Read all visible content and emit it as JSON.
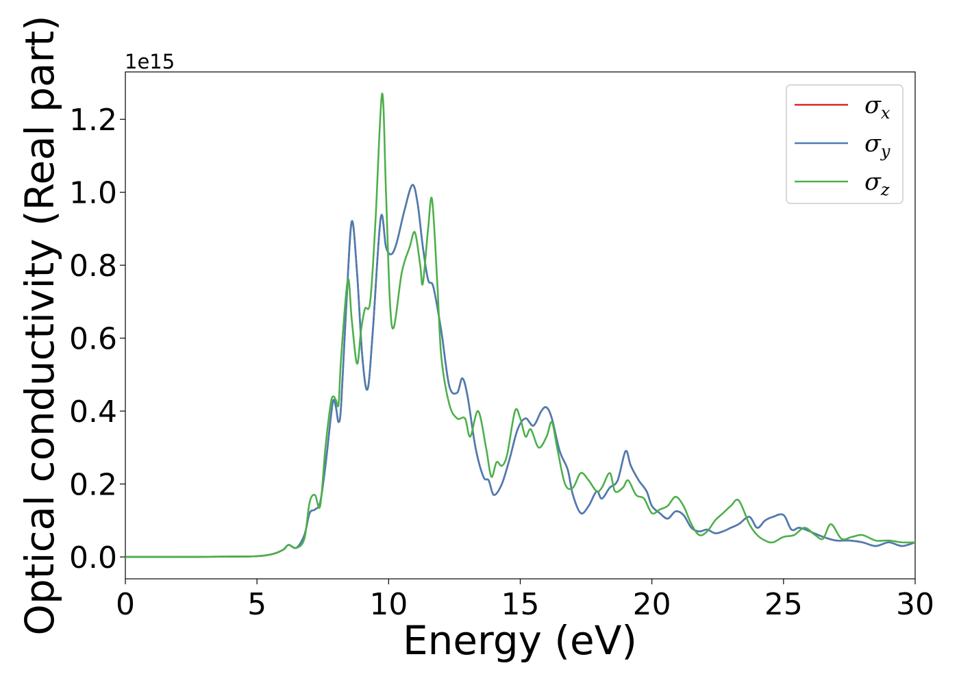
{
  "chart_data": {
    "type": "line",
    "xlabel": "Energy (eV)",
    "ylabel": "Optical conductivity (Real part)",
    "y_offset_label": "1e15",
    "xlim": [
      0,
      30
    ],
    "ylim": [
      -0.06,
      1.33
    ],
    "x_ticks": [
      0,
      5,
      10,
      15,
      20,
      25,
      30
    ],
    "x_tick_labels": [
      "0",
      "5",
      "10",
      "15",
      "20",
      "25",
      "30"
    ],
    "y_ticks": [
      0.0,
      0.2,
      0.4,
      0.6,
      0.8,
      1.0,
      1.2
    ],
    "y_tick_labels": [
      "0.0",
      "0.2",
      "0.4",
      "0.6",
      "0.8",
      "1.0",
      "1.2"
    ],
    "grid": false,
    "legend_position": "top-right",
    "series": [
      {
        "name": "σ",
        "subscript": "x",
        "color": "#d62728",
        "x": [
          0,
          2,
          4,
          5,
          5.6,
          6.0,
          6.2,
          6.5,
          6.8,
          7.0,
          7.2,
          7.4,
          7.6,
          7.8,
          7.9,
          8.0,
          8.1,
          8.2,
          8.4,
          8.6,
          8.8,
          9.0,
          9.2,
          9.4,
          9.7,
          9.9,
          10.1,
          10.3,
          10.6,
          10.9,
          11.1,
          11.3,
          11.5,
          11.7,
          12.0,
          12.3,
          12.6,
          12.8,
          13.0,
          13.3,
          13.6,
          13.8,
          14.0,
          14.3,
          14.6,
          14.9,
          15.2,
          15.5,
          15.8,
          16.0,
          16.2,
          16.5,
          16.8,
          17.0,
          17.3,
          17.6,
          17.9,
          18.1,
          18.4,
          18.7,
          19.0,
          19.2,
          19.5,
          19.8,
          20.0,
          20.3,
          20.6,
          20.9,
          21.2,
          21.5,
          21.8,
          22.1,
          22.4,
          22.7,
          23.0,
          23.3,
          23.7,
          24.0,
          24.3,
          24.6,
          25.0,
          25.3,
          25.6,
          26.0,
          26.5,
          27.0,
          27.5,
          28.0,
          28.5,
          29.0,
          29.5,
          30.0
        ],
        "y": [
          0.0,
          0.0,
          0.001,
          0.002,
          0.008,
          0.02,
          0.033,
          0.025,
          0.06,
          0.12,
          0.13,
          0.15,
          0.25,
          0.38,
          0.43,
          0.41,
          0.37,
          0.42,
          0.7,
          0.92,
          0.78,
          0.55,
          0.46,
          0.62,
          0.93,
          0.85,
          0.83,
          0.86,
          0.95,
          1.02,
          0.97,
          0.85,
          0.76,
          0.74,
          0.62,
          0.47,
          0.45,
          0.49,
          0.44,
          0.3,
          0.22,
          0.21,
          0.17,
          0.2,
          0.27,
          0.35,
          0.38,
          0.36,
          0.4,
          0.41,
          0.38,
          0.29,
          0.24,
          0.17,
          0.12,
          0.14,
          0.18,
          0.16,
          0.19,
          0.21,
          0.29,
          0.25,
          0.21,
          0.18,
          0.14,
          0.12,
          0.105,
          0.125,
          0.115,
          0.08,
          0.07,
          0.075,
          0.065,
          0.07,
          0.08,
          0.09,
          0.11,
          0.08,
          0.1,
          0.11,
          0.115,
          0.075,
          0.08,
          0.07,
          0.055,
          0.045,
          0.045,
          0.04,
          0.03,
          0.04,
          0.03,
          0.04
        ]
      },
      {
        "name": "σ",
        "subscript": "y",
        "color": "#4a7db3",
        "x": [
          0,
          2,
          4,
          5,
          5.6,
          6.0,
          6.2,
          6.5,
          6.8,
          7.0,
          7.2,
          7.4,
          7.6,
          7.8,
          7.9,
          8.0,
          8.1,
          8.2,
          8.4,
          8.6,
          8.8,
          9.0,
          9.2,
          9.4,
          9.7,
          9.9,
          10.1,
          10.3,
          10.6,
          10.9,
          11.1,
          11.3,
          11.5,
          11.7,
          12.0,
          12.3,
          12.6,
          12.8,
          13.0,
          13.3,
          13.6,
          13.8,
          14.0,
          14.3,
          14.6,
          14.9,
          15.2,
          15.5,
          15.8,
          16.0,
          16.2,
          16.5,
          16.8,
          17.0,
          17.3,
          17.6,
          17.9,
          18.1,
          18.4,
          18.7,
          19.0,
          19.2,
          19.5,
          19.8,
          20.0,
          20.3,
          20.6,
          20.9,
          21.2,
          21.5,
          21.8,
          22.1,
          22.4,
          22.7,
          23.0,
          23.3,
          23.7,
          24.0,
          24.3,
          24.6,
          25.0,
          25.3,
          25.6,
          26.0,
          26.5,
          27.0,
          27.5,
          28.0,
          28.5,
          29.0,
          29.5,
          30.0
        ],
        "y": [
          0.0,
          0.0,
          0.001,
          0.002,
          0.008,
          0.02,
          0.033,
          0.025,
          0.06,
          0.12,
          0.13,
          0.15,
          0.25,
          0.38,
          0.43,
          0.41,
          0.37,
          0.42,
          0.7,
          0.92,
          0.78,
          0.55,
          0.46,
          0.62,
          0.93,
          0.85,
          0.83,
          0.86,
          0.95,
          1.02,
          0.97,
          0.85,
          0.76,
          0.74,
          0.62,
          0.47,
          0.45,
          0.49,
          0.44,
          0.3,
          0.22,
          0.21,
          0.17,
          0.2,
          0.27,
          0.35,
          0.38,
          0.36,
          0.4,
          0.41,
          0.38,
          0.29,
          0.24,
          0.17,
          0.12,
          0.14,
          0.18,
          0.16,
          0.19,
          0.21,
          0.29,
          0.25,
          0.21,
          0.18,
          0.14,
          0.12,
          0.105,
          0.125,
          0.115,
          0.08,
          0.07,
          0.075,
          0.065,
          0.07,
          0.08,
          0.09,
          0.11,
          0.08,
          0.1,
          0.11,
          0.115,
          0.075,
          0.08,
          0.07,
          0.055,
          0.045,
          0.045,
          0.04,
          0.03,
          0.04,
          0.03,
          0.04
        ]
      },
      {
        "name": "σ",
        "subscript": "z",
        "color": "#4daf4a",
        "x": [
          0,
          2,
          4,
          5,
          5.6,
          6.0,
          6.2,
          6.5,
          6.8,
          7.0,
          7.2,
          7.4,
          7.6,
          7.8,
          7.9,
          8.0,
          8.1,
          8.2,
          8.45,
          8.6,
          8.8,
          8.95,
          9.1,
          9.3,
          9.5,
          9.75,
          9.9,
          10.05,
          10.2,
          10.5,
          10.8,
          11.0,
          11.2,
          11.3,
          11.5,
          11.65,
          11.85,
          12.0,
          12.3,
          12.6,
          12.9,
          13.1,
          13.4,
          13.7,
          13.9,
          14.1,
          14.3,
          14.5,
          14.8,
          15.0,
          15.2,
          15.4,
          15.7,
          16.0,
          16.2,
          16.4,
          16.7,
          17.0,
          17.3,
          17.6,
          17.9,
          18.1,
          18.4,
          18.6,
          18.9,
          19.1,
          19.4,
          19.7,
          20.0,
          20.3,
          20.6,
          20.9,
          21.2,
          21.5,
          21.8,
          22.1,
          22.4,
          22.7,
          23.0,
          23.3,
          23.7,
          24.0,
          24.3,
          24.6,
          25.0,
          25.4,
          25.8,
          26.2,
          26.5,
          26.8,
          27.2,
          27.6,
          28.0,
          28.5,
          29.0,
          29.5,
          30.0
        ],
        "y": [
          0.0,
          0.0,
          0.001,
          0.002,
          0.008,
          0.02,
          0.033,
          0.025,
          0.05,
          0.15,
          0.17,
          0.14,
          0.3,
          0.42,
          0.44,
          0.43,
          0.42,
          0.55,
          0.76,
          0.65,
          0.53,
          0.62,
          0.68,
          0.7,
          0.92,
          1.27,
          1.0,
          0.7,
          0.63,
          0.78,
          0.85,
          0.89,
          0.8,
          0.75,
          0.9,
          0.98,
          0.75,
          0.55,
          0.42,
          0.38,
          0.38,
          0.33,
          0.4,
          0.3,
          0.22,
          0.26,
          0.25,
          0.28,
          0.4,
          0.38,
          0.33,
          0.35,
          0.3,
          0.33,
          0.37,
          0.3,
          0.2,
          0.19,
          0.23,
          0.21,
          0.18,
          0.19,
          0.23,
          0.18,
          0.19,
          0.21,
          0.17,
          0.16,
          0.12,
          0.13,
          0.14,
          0.165,
          0.14,
          0.09,
          0.06,
          0.07,
          0.1,
          0.12,
          0.14,
          0.155,
          0.09,
          0.06,
          0.045,
          0.04,
          0.055,
          0.06,
          0.08,
          0.06,
          0.05,
          0.09,
          0.05,
          0.055,
          0.06,
          0.045,
          0.045,
          0.04,
          0.04
        ]
      }
    ]
  }
}
